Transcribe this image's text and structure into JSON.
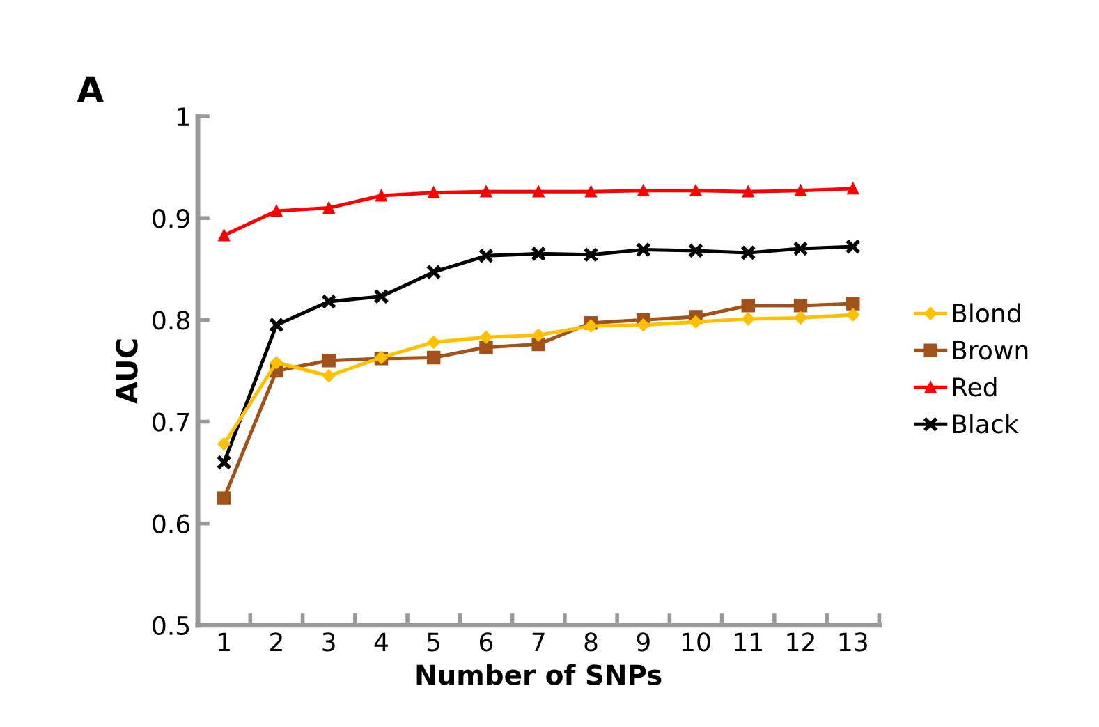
{
  "chart_data": {
    "type": "line",
    "xlabel": "Number of SNPs",
    "ylabel": "AUC",
    "annotations": [
      "A"
    ],
    "categories": [
      "1",
      "2",
      "3",
      "4",
      "5",
      "6",
      "7",
      "8",
      "9",
      "10",
      "11",
      "12",
      "13"
    ],
    "series": [
      {
        "name": "Blond",
        "color": "#ffc000",
        "marker": "diamond",
        "values": [
          0.678,
          0.758,
          0.745,
          0.763,
          0.778,
          0.783,
          0.785,
          0.794,
          0.795,
          0.798,
          0.801,
          0.802,
          0.805
        ]
      },
      {
        "name": "Brown",
        "color": "#a0521a",
        "marker": "square",
        "values": [
          0.625,
          0.75,
          0.76,
          0.762,
          0.763,
          0.773,
          0.776,
          0.797,
          0.8,
          0.803,
          0.814,
          0.814,
          0.816
        ]
      },
      {
        "name": "Red",
        "color": "#ff0000",
        "marker": "triangle",
        "values": [
          0.883,
          0.907,
          0.91,
          0.922,
          0.925,
          0.926,
          0.926,
          0.926,
          0.927,
          0.927,
          0.926,
          0.927,
          0.929
        ]
      },
      {
        "name": "Black",
        "color": "#000000",
        "marker": "cross",
        "values": [
          0.66,
          0.795,
          0.818,
          0.823,
          0.847,
          0.863,
          0.865,
          0.864,
          0.869,
          0.868,
          0.866,
          0.87,
          0.872
        ]
      }
    ],
    "ylim": [
      0.5,
      1
    ],
    "yticks": [
      0.5,
      0.6,
      0.7,
      0.8,
      0.9,
      1
    ],
    "grid": false,
    "legend": "right",
    "line_style": "solid"
  }
}
